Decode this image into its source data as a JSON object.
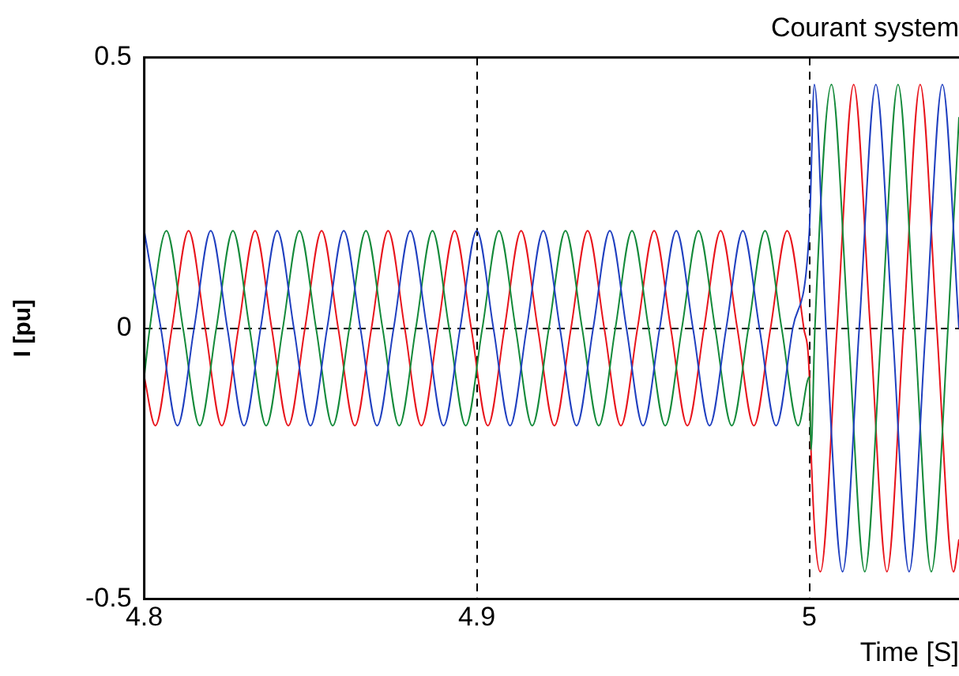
{
  "chart_data": {
    "type": "line",
    "title": "Courant system",
    "xlabel": "Time [S]",
    "ylabel": "I [pu]",
    "xlim": [
      4.8,
      5.045
    ],
    "ylim": [
      -0.5,
      0.5
    ],
    "xticks": [
      4.8,
      4.9,
      5
    ],
    "yticks": [
      -0.5,
      0,
      0.5
    ],
    "grid": true,
    "legend": false,
    "marker": "none",
    "series": [
      {
        "color": "#2040c0",
        "x": [
          4.8,
          4.805,
          4.81,
          4.815,
          4.82,
          4.825,
          4.83,
          4.835,
          4.84,
          4.845,
          4.85,
          4.855,
          4.86,
          4.865,
          4.87,
          4.875,
          4.88,
          4.885,
          4.89,
          4.895,
          4.9,
          4.905,
          4.91,
          4.915,
          4.92,
          4.925,
          4.93,
          4.935,
          4.94,
          4.945,
          4.95,
          4.955,
          4.96,
          4.965,
          4.97,
          4.975,
          4.98,
          4.985,
          4.99,
          4.995,
          5,
          5.0015,
          5.005,
          5.01,
          5.015,
          5.02,
          5.025,
          5.03,
          5.035,
          5.04,
          5.045
        ],
        "values": [
          0.18,
          0,
          -0.18,
          0,
          0.18,
          0,
          -0.18,
          0,
          0.18,
          0,
          -0.18,
          0,
          0.18,
          0,
          -0.18,
          0,
          0.18,
          0,
          -0.18,
          0,
          0.18,
          0,
          -0.18,
          0,
          0.18,
          0,
          -0.18,
          0,
          0.18,
          0,
          -0.18,
          0,
          0.18,
          0,
          -0.18,
          0,
          0.18,
          0,
          -0.18,
          0,
          0.18,
          0.45,
          0,
          -0.45,
          0,
          0.45,
          0,
          -0.45,
          0,
          0.45,
          0
        ]
      },
      {
        "color": "#138a3a",
        "x": [
          4.8,
          4.80167,
          4.80667,
          4.81167,
          4.81667,
          4.82167,
          4.82667,
          4.83167,
          4.83667,
          4.84167,
          4.84667,
          4.85167,
          4.85667,
          4.86167,
          4.86667,
          4.87167,
          4.87667,
          4.88167,
          4.88667,
          4.89167,
          4.89667,
          4.90167,
          4.90667,
          4.91167,
          4.91667,
          4.92167,
          4.92667,
          4.93167,
          4.93667,
          4.94167,
          4.94667,
          4.95167,
          4.95667,
          4.96167,
          4.96667,
          4.97167,
          4.97667,
          4.98167,
          4.98667,
          4.99167,
          4.99667,
          5,
          5.0005,
          5.00167,
          5.00667,
          5.01167,
          5.01667,
          5.02167,
          5.02667,
          5.03167,
          5.03667,
          5.04167,
          5.045
        ],
        "values": [
          -0.09,
          0,
          0.18,
          0,
          -0.18,
          0,
          0.18,
          0,
          -0.18,
          0,
          0.18,
          0,
          -0.18,
          0,
          0.18,
          0,
          -0.18,
          0,
          0.18,
          0,
          -0.18,
          0,
          0.18,
          0,
          -0.18,
          0,
          0.18,
          0,
          -0.18,
          0,
          0.18,
          0,
          -0.18,
          0,
          0.18,
          0,
          -0.18,
          0,
          0.18,
          0,
          -0.18,
          -0.09,
          -0.225,
          0,
          0.45,
          0,
          -0.45,
          0,
          0.45,
          0,
          -0.45,
          0,
          0.39
        ]
      },
      {
        "color": "#e8141c",
        "x": [
          4.8,
          4.80333,
          4.80833,
          4.81333,
          4.81833,
          4.82333,
          4.82833,
          4.83333,
          4.83833,
          4.84333,
          4.84833,
          4.85333,
          4.85833,
          4.86333,
          4.86833,
          4.87333,
          4.87833,
          4.88333,
          4.88833,
          4.89333,
          4.89833,
          4.90333,
          4.90833,
          4.91333,
          4.91833,
          4.92333,
          4.92833,
          4.93333,
          4.93833,
          4.94333,
          4.94833,
          4.95333,
          4.95833,
          4.96333,
          4.96833,
          4.97333,
          4.97833,
          4.98333,
          4.98833,
          4.99333,
          4.99833,
          5,
          5.0005,
          5.00333,
          5.00833,
          5.01333,
          5.01833,
          5.02333,
          5.02833,
          5.03333,
          5.03833,
          5.04333,
          5.045
        ],
        "values": [
          -0.09,
          -0.18,
          0,
          0.18,
          0,
          -0.18,
          0,
          0.18,
          0,
          -0.18,
          0,
          0.18,
          0,
          -0.18,
          0,
          0.18,
          0,
          -0.18,
          0,
          0.18,
          0,
          -0.18,
          0,
          0.18,
          0,
          -0.18,
          0,
          0.18,
          0,
          -0.18,
          0,
          0.18,
          0,
          -0.18,
          0,
          0.18,
          0,
          -0.18,
          0,
          0.18,
          0,
          -0.09,
          -0.225,
          -0.45,
          0,
          0.45,
          0,
          -0.45,
          0,
          0.45,
          0,
          -0.45,
          -0.39
        ]
      }
    ]
  }
}
